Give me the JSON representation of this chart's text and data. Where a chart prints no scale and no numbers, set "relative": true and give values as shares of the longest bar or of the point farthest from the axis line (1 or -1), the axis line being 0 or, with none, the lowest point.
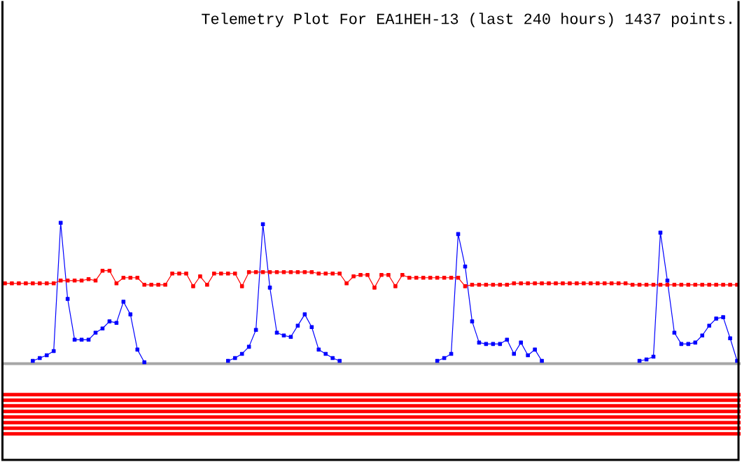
{
  "chart_data": {
    "type": "line",
    "title": "Telemetry Plot For EA1HEH-13 (last 240 hours) 1437 points.",
    "relative": true,
    "marker": "square",
    "categories": [
      null,
      null,
      null,
      null,
      null,
      null,
      null,
      null,
      null,
      null,
      null,
      null,
      null,
      null,
      null,
      null,
      null,
      null,
      null,
      null,
      null,
      null,
      null,
      null,
      null,
      null,
      null,
      null,
      null,
      null,
      null,
      null,
      null,
      null,
      null,
      null,
      null,
      null,
      null,
      null,
      null,
      null,
      null,
      null,
      null,
      null,
      null,
      null,
      null,
      null,
      null,
      null,
      null,
      null,
      null,
      null,
      null,
      null,
      null,
      null,
      null,
      null,
      null,
      null,
      null,
      null,
      null,
      null,
      null,
      null,
      null,
      null,
      null,
      null,
      null,
      null,
      null,
      null,
      null,
      null,
      null,
      null,
      null,
      null,
      null,
      null,
      null,
      null,
      null,
      null,
      null,
      null,
      null,
      null,
      null,
      null,
      null,
      null,
      null,
      null,
      null,
      null,
      null,
      null,
      null,
      null
    ],
    "series": [
      {
        "color": "#0000ff",
        "values": [
          null,
          null,
          null,
          null,
          0.02,
          0.04,
          0.06,
          0.09,
          1.0,
          0.46,
          0.17,
          0.17,
          0.17,
          0.22,
          0.25,
          0.3,
          0.29,
          0.44,
          0.35,
          0.1,
          0.01,
          null,
          null,
          null,
          null,
          null,
          null,
          null,
          null,
          null,
          null,
          null,
          0.02,
          0.04,
          0.07,
          0.12,
          0.24,
          0.99,
          0.54,
          0.22,
          0.2,
          0.19,
          0.27,
          0.35,
          0.26,
          0.1,
          0.07,
          0.04,
          0.02,
          null,
          null,
          null,
          null,
          null,
          null,
          null,
          null,
          null,
          null,
          null,
          null,
          null,
          0.02,
          0.04,
          0.07,
          0.92,
          0.69,
          0.3,
          0.15,
          0.14,
          0.14,
          0.14,
          0.17,
          0.07,
          0.15,
          0.06,
          0.1,
          0.02,
          null,
          null,
          null,
          null,
          null,
          null,
          null,
          null,
          null,
          null,
          null,
          null,
          null,
          0.02,
          0.03,
          0.05,
          0.93,
          0.59,
          0.22,
          0.14,
          0.14,
          0.15,
          0.2,
          0.27,
          0.32,
          0.33,
          0.18,
          0.02
        ]
      },
      {
        "color": "#ff0000",
        "values": [
          0.57,
          0.57,
          0.57,
          0.57,
          0.57,
          0.57,
          0.57,
          0.57,
          0.59,
          0.59,
          0.59,
          0.59,
          0.6,
          0.59,
          0.66,
          0.66,
          0.57,
          0.61,
          0.61,
          0.61,
          0.56,
          0.56,
          0.56,
          0.56,
          0.64,
          0.64,
          0.64,
          0.55,
          0.62,
          0.56,
          0.64,
          0.64,
          0.64,
          0.64,
          0.55,
          0.65,
          0.65,
          0.65,
          0.65,
          0.65,
          0.65,
          0.65,
          0.65,
          0.65,
          0.65,
          0.64,
          0.64,
          0.64,
          0.64,
          0.57,
          0.62,
          0.63,
          0.63,
          0.54,
          0.63,
          0.63,
          0.55,
          0.63,
          0.61,
          0.61,
          0.61,
          0.61,
          0.61,
          0.61,
          0.61,
          0.61,
          0.55,
          0.56,
          0.56,
          0.56,
          0.56,
          0.56,
          0.56,
          0.57,
          0.57,
          0.57,
          0.57,
          0.57,
          0.57,
          0.57,
          0.57,
          0.57,
          0.57,
          0.57,
          0.57,
          0.57,
          0.57,
          0.57,
          0.57,
          0.57,
          0.56,
          0.56,
          0.56,
          0.56,
          0.56,
          0.56,
          0.56,
          0.56,
          0.56,
          0.56,
          0.56,
          0.56,
          0.56,
          0.56,
          0.56,
          0.56
        ]
      }
    ]
  }
}
